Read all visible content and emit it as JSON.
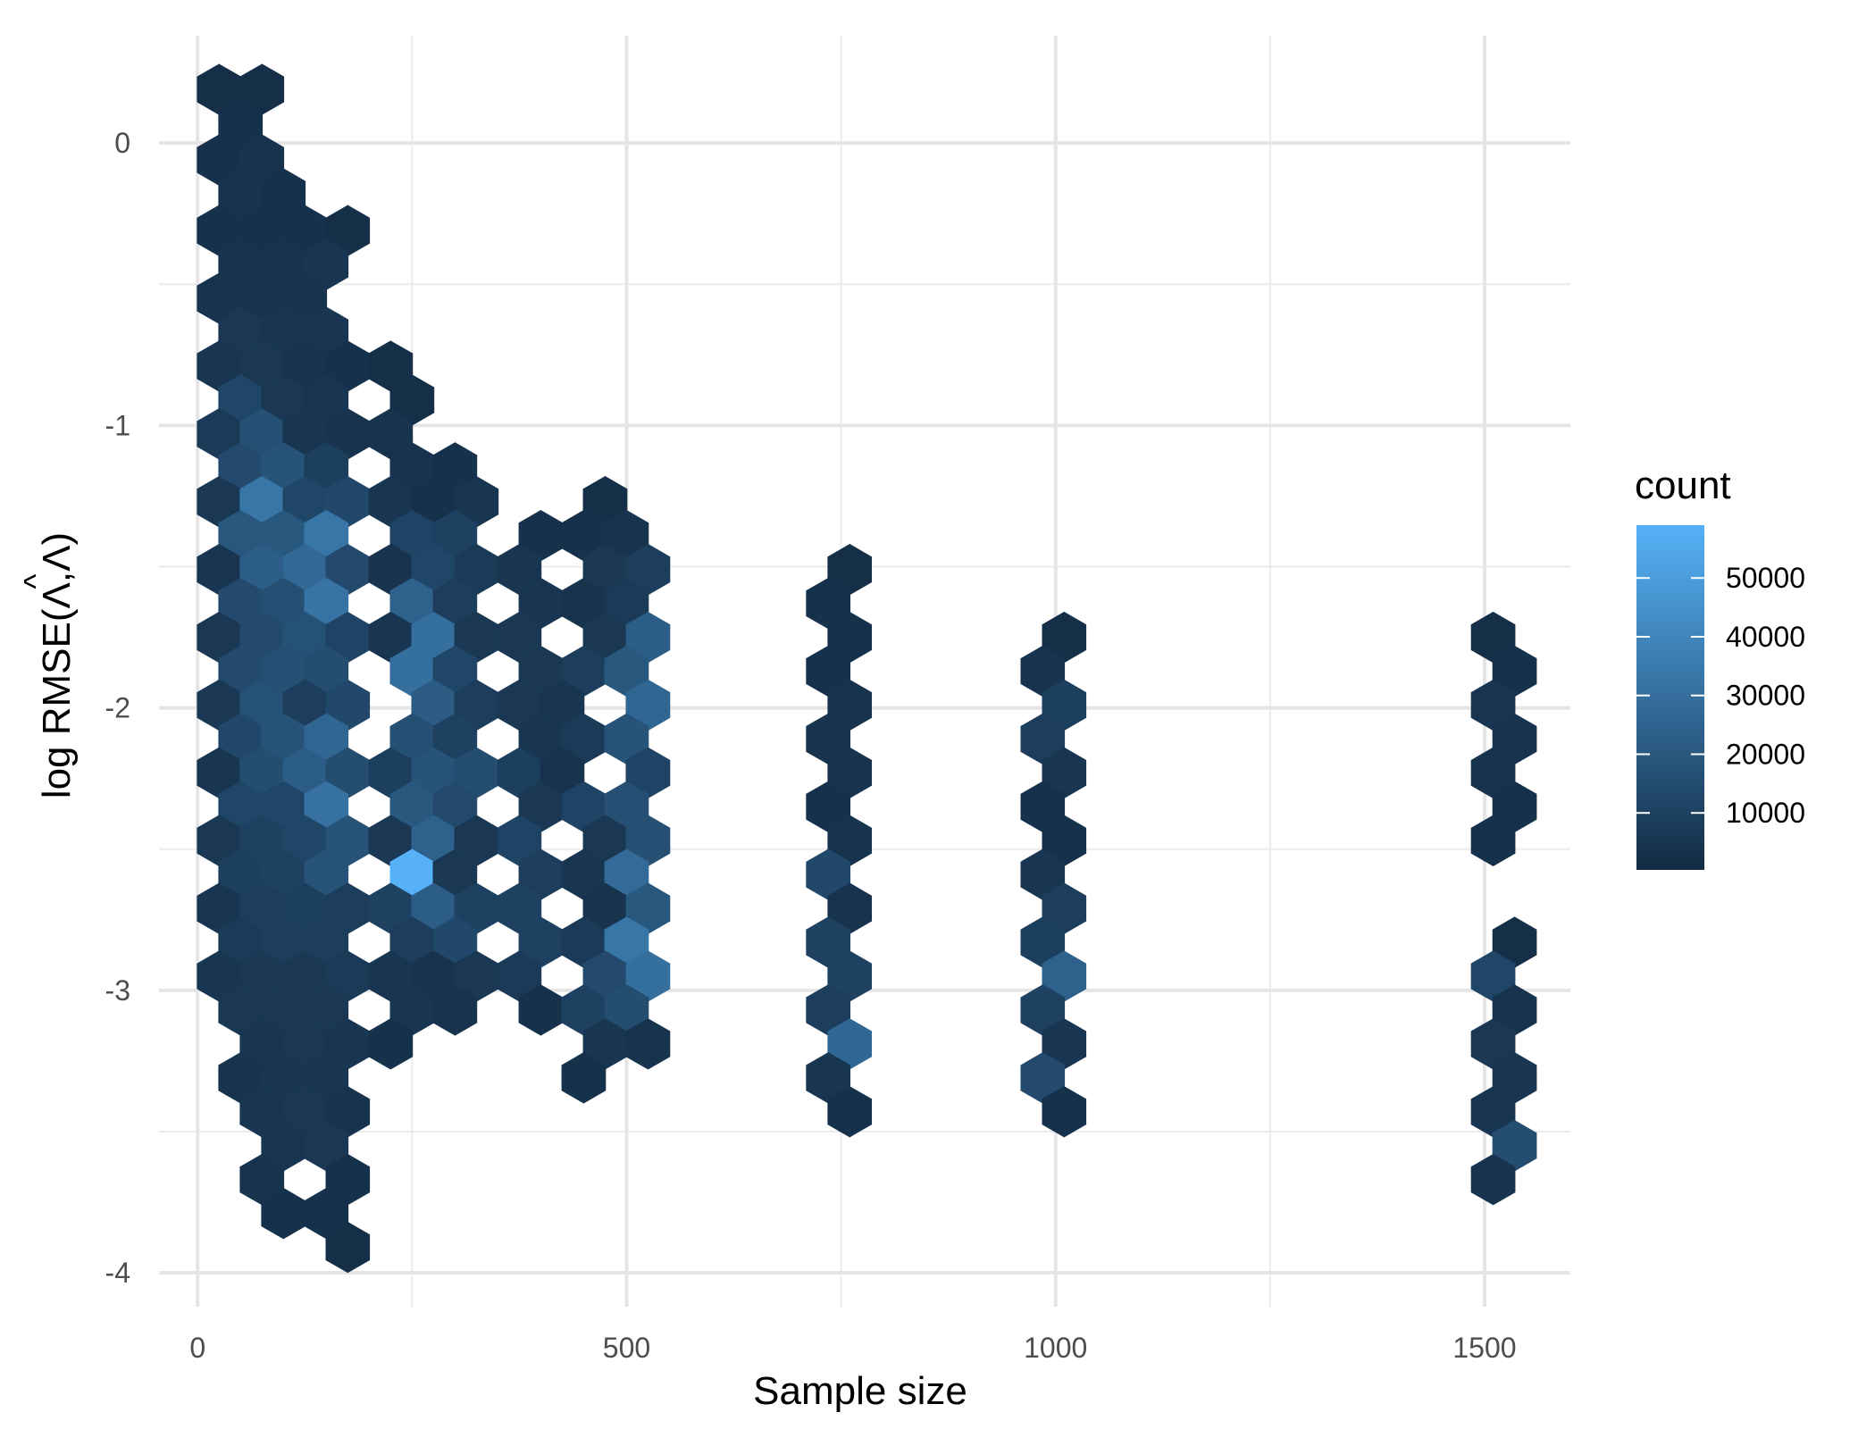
{
  "chart_data": {
    "type": "hexbin",
    "xlabel": "Sample size",
    "ylabel": "log  RMSE(Λ,Λ̂)",
    "ylabel_parts": [
      "log  RMSE(Λ,",
      "Λ",
      ")"
    ],
    "ylabel_hat": "^",
    "x_ticks": [
      0,
      500,
      1000,
      1500
    ],
    "y_ticks": [
      0,
      -1,
      -2,
      -3,
      -4
    ],
    "xlim": [
      -45,
      1600
    ],
    "ylim": [
      -4.12,
      0.38
    ],
    "legend": {
      "title": "count",
      "breaks": [
        10000,
        20000,
        30000,
        40000,
        50000
      ],
      "range": [
        300,
        59000
      ],
      "low_color": "#132B43",
      "high_color": "#56B1F7"
    },
    "bins": [
      {
        "x": 25,
        "y": 0.19,
        "count": 2000
      },
      {
        "x": 75,
        "y": 0.19,
        "count": 2000
      },
      {
        "x": 50,
        "y": 0.06,
        "count": 3000
      },
      {
        "x": 25,
        "y": -0.06,
        "count": 3000
      },
      {
        "x": 75,
        "y": -0.06,
        "count": 4000
      },
      {
        "x": 50,
        "y": -0.18,
        "count": 4000
      },
      {
        "x": 100,
        "y": -0.18,
        "count": 3000
      },
      {
        "x": 25,
        "y": -0.31,
        "count": 3000
      },
      {
        "x": 75,
        "y": -0.31,
        "count": 3000
      },
      {
        "x": 125,
        "y": -0.31,
        "count": 3000
      },
      {
        "x": 175,
        "y": -0.31,
        "count": 2000
      },
      {
        "x": 50,
        "y": -0.43,
        "count": 4000
      },
      {
        "x": 100,
        "y": -0.43,
        "count": 4000
      },
      {
        "x": 150,
        "y": -0.43,
        "count": 5000
      },
      {
        "x": 25,
        "y": -0.55,
        "count": 4000
      },
      {
        "x": 75,
        "y": -0.55,
        "count": 4000
      },
      {
        "x": 125,
        "y": -0.55,
        "count": 4000
      },
      {
        "x": 50,
        "y": -0.67,
        "count": 6000
      },
      {
        "x": 100,
        "y": -0.67,
        "count": 5000
      },
      {
        "x": 150,
        "y": -0.67,
        "count": 5000
      },
      {
        "x": 25,
        "y": -0.79,
        "count": 5000
      },
      {
        "x": 75,
        "y": -0.79,
        "count": 6000
      },
      {
        "x": 125,
        "y": -0.79,
        "count": 4000
      },
      {
        "x": 175,
        "y": -0.79,
        "count": 3000
      },
      {
        "x": 225,
        "y": -0.79,
        "count": 2000
      },
      {
        "x": 50,
        "y": -0.91,
        "count": 12000
      },
      {
        "x": 100,
        "y": -0.91,
        "count": 6000
      },
      {
        "x": 150,
        "y": -0.91,
        "count": 5000
      },
      {
        "x": 250,
        "y": -0.91,
        "count": 2000
      },
      {
        "x": 25,
        "y": -1.03,
        "count": 7000
      },
      {
        "x": 75,
        "y": -1.03,
        "count": 16000
      },
      {
        "x": 125,
        "y": -1.03,
        "count": 5000
      },
      {
        "x": 175,
        "y": -1.03,
        "count": 4000
      },
      {
        "x": 225,
        "y": -1.03,
        "count": 4000
      },
      {
        "x": 50,
        "y": -1.15,
        "count": 14000
      },
      {
        "x": 100,
        "y": -1.15,
        "count": 18000
      },
      {
        "x": 150,
        "y": -1.15,
        "count": 9000
      },
      {
        "x": 250,
        "y": -1.15,
        "count": 4000
      },
      {
        "x": 300,
        "y": -1.15,
        "count": 3000
      },
      {
        "x": 25,
        "y": -1.27,
        "count": 6000
      },
      {
        "x": 75,
        "y": -1.27,
        "count": 33000
      },
      {
        "x": 125,
        "y": -1.27,
        "count": 12000
      },
      {
        "x": 175,
        "y": -1.27,
        "count": 13000
      },
      {
        "x": 225,
        "y": -1.27,
        "count": 5000
      },
      {
        "x": 275,
        "y": -1.27,
        "count": 3000
      },
      {
        "x": 325,
        "y": -1.27,
        "count": 5000
      },
      {
        "x": 475,
        "y": -1.27,
        "count": 2000
      },
      {
        "x": 50,
        "y": -1.39,
        "count": 19000
      },
      {
        "x": 100,
        "y": -1.39,
        "count": 20000
      },
      {
        "x": 150,
        "y": -1.39,
        "count": 33000
      },
      {
        "x": 250,
        "y": -1.39,
        "count": 11000
      },
      {
        "x": 300,
        "y": -1.39,
        "count": 10000
      },
      {
        "x": 400,
        "y": -1.39,
        "count": 3000
      },
      {
        "x": 450,
        "y": -1.39,
        "count": 3000
      },
      {
        "x": 500,
        "y": -1.39,
        "count": 4000
      },
      {
        "x": 25,
        "y": -1.51,
        "count": 5000
      },
      {
        "x": 75,
        "y": -1.51,
        "count": 22000
      },
      {
        "x": 125,
        "y": -1.51,
        "count": 27000
      },
      {
        "x": 175,
        "y": -1.51,
        "count": 14000
      },
      {
        "x": 225,
        "y": -1.51,
        "count": 4000
      },
      {
        "x": 275,
        "y": -1.51,
        "count": 12000
      },
      {
        "x": 325,
        "y": -1.51,
        "count": 7000
      },
      {
        "x": 375,
        "y": -1.51,
        "count": 5000
      },
      {
        "x": 475,
        "y": -1.51,
        "count": 6000
      },
      {
        "x": 525,
        "y": -1.51,
        "count": 8000
      },
      {
        "x": 760,
        "y": -1.51,
        "count": 2000
      },
      {
        "x": 50,
        "y": -1.63,
        "count": 14000
      },
      {
        "x": 100,
        "y": -1.63,
        "count": 16000
      },
      {
        "x": 150,
        "y": -1.63,
        "count": 32000
      },
      {
        "x": 250,
        "y": -1.63,
        "count": 24000
      },
      {
        "x": 300,
        "y": -1.63,
        "count": 8000
      },
      {
        "x": 400,
        "y": -1.63,
        "count": 5000
      },
      {
        "x": 450,
        "y": -1.63,
        "count": 4000
      },
      {
        "x": 500,
        "y": -1.63,
        "count": 7000
      },
      {
        "x": 735,
        "y": -1.63,
        "count": 3000
      },
      {
        "x": 25,
        "y": -1.75,
        "count": 6000
      },
      {
        "x": 75,
        "y": -1.75,
        "count": 14000
      },
      {
        "x": 125,
        "y": -1.75,
        "count": 17000
      },
      {
        "x": 175,
        "y": -1.75,
        "count": 11000
      },
      {
        "x": 225,
        "y": -1.75,
        "count": 5000
      },
      {
        "x": 275,
        "y": -1.75,
        "count": 30000
      },
      {
        "x": 325,
        "y": -1.75,
        "count": 6000
      },
      {
        "x": 375,
        "y": -1.75,
        "count": 6000
      },
      {
        "x": 475,
        "y": -1.75,
        "count": 6000
      },
      {
        "x": 525,
        "y": -1.75,
        "count": 22000
      },
      {
        "x": 760,
        "y": -1.75,
        "count": 3000
      },
      {
        "x": 1010,
        "y": -1.75,
        "count": 2000
      },
      {
        "x": 1510,
        "y": -1.75,
        "count": 2000
      },
      {
        "x": 50,
        "y": -1.87,
        "count": 14000
      },
      {
        "x": 100,
        "y": -1.87,
        "count": 16000
      },
      {
        "x": 150,
        "y": -1.87,
        "count": 15000
      },
      {
        "x": 250,
        "y": -1.87,
        "count": 30000
      },
      {
        "x": 300,
        "y": -1.87,
        "count": 12000
      },
      {
        "x": 400,
        "y": -1.87,
        "count": 6000
      },
      {
        "x": 450,
        "y": -1.87,
        "count": 8000
      },
      {
        "x": 500,
        "y": -1.87,
        "count": 20000
      },
      {
        "x": 735,
        "y": -1.87,
        "count": 3000
      },
      {
        "x": 985,
        "y": -1.87,
        "count": 4000
      },
      {
        "x": 1535,
        "y": -1.87,
        "count": 3000
      },
      {
        "x": 25,
        "y": -1.99,
        "count": 6000
      },
      {
        "x": 75,
        "y": -1.99,
        "count": 17000
      },
      {
        "x": 125,
        "y": -1.99,
        "count": 8000
      },
      {
        "x": 175,
        "y": -1.99,
        "count": 13000
      },
      {
        "x": 275,
        "y": -1.99,
        "count": 21000
      },
      {
        "x": 325,
        "y": -1.99,
        "count": 8000
      },
      {
        "x": 375,
        "y": -1.99,
        "count": 6000
      },
      {
        "x": 425,
        "y": -1.99,
        "count": 5000
      },
      {
        "x": 525,
        "y": -1.99,
        "count": 26000
      },
      {
        "x": 760,
        "y": -1.99,
        "count": 4000
      },
      {
        "x": 1010,
        "y": -1.99,
        "count": 9000
      },
      {
        "x": 1510,
        "y": -1.99,
        "count": 5000
      },
      {
        "x": 50,
        "y": -2.11,
        "count": 13000
      },
      {
        "x": 100,
        "y": -2.11,
        "count": 18000
      },
      {
        "x": 150,
        "y": -2.11,
        "count": 26000
      },
      {
        "x": 250,
        "y": -2.11,
        "count": 16000
      },
      {
        "x": 300,
        "y": -2.11,
        "count": 10000
      },
      {
        "x": 400,
        "y": -2.11,
        "count": 5000
      },
      {
        "x": 450,
        "y": -2.11,
        "count": 7000
      },
      {
        "x": 500,
        "y": -2.11,
        "count": 18000
      },
      {
        "x": 735,
        "y": -2.11,
        "count": 4000
      },
      {
        "x": 985,
        "y": -2.11,
        "count": 8000
      },
      {
        "x": 1535,
        "y": -2.11,
        "count": 4000
      },
      {
        "x": 25,
        "y": -2.23,
        "count": 5000
      },
      {
        "x": 75,
        "y": -2.23,
        "count": 15000
      },
      {
        "x": 125,
        "y": -2.23,
        "count": 22000
      },
      {
        "x": 175,
        "y": -2.23,
        "count": 15000
      },
      {
        "x": 225,
        "y": -2.23,
        "count": 9000
      },
      {
        "x": 275,
        "y": -2.23,
        "count": 18000
      },
      {
        "x": 325,
        "y": -2.23,
        "count": 15000
      },
      {
        "x": 375,
        "y": -2.23,
        "count": 9000
      },
      {
        "x": 425,
        "y": -2.23,
        "count": 4000
      },
      {
        "x": 525,
        "y": -2.23,
        "count": 11000
      },
      {
        "x": 760,
        "y": -2.23,
        "count": 4000
      },
      {
        "x": 1010,
        "y": -2.23,
        "count": 5000
      },
      {
        "x": 1510,
        "y": -2.23,
        "count": 4000
      },
      {
        "x": 50,
        "y": -2.35,
        "count": 12000
      },
      {
        "x": 100,
        "y": -2.35,
        "count": 12000
      },
      {
        "x": 150,
        "y": -2.35,
        "count": 31000
      },
      {
        "x": 250,
        "y": -2.35,
        "count": 20000
      },
      {
        "x": 300,
        "y": -2.35,
        "count": 14000
      },
      {
        "x": 400,
        "y": -2.35,
        "count": 6000
      },
      {
        "x": 450,
        "y": -2.35,
        "count": 11000
      },
      {
        "x": 500,
        "y": -2.35,
        "count": 16000
      },
      {
        "x": 735,
        "y": -2.35,
        "count": 3000
      },
      {
        "x": 985,
        "y": -2.35,
        "count": 3000
      },
      {
        "x": 1535,
        "y": -2.35,
        "count": 3000
      },
      {
        "x": 25,
        "y": -2.47,
        "count": 6000
      },
      {
        "x": 75,
        "y": -2.47,
        "count": 10000
      },
      {
        "x": 125,
        "y": -2.47,
        "count": 12000
      },
      {
        "x": 175,
        "y": -2.47,
        "count": 18000
      },
      {
        "x": 225,
        "y": -2.47,
        "count": 6000
      },
      {
        "x": 275,
        "y": -2.47,
        "count": 24000
      },
      {
        "x": 325,
        "y": -2.47,
        "count": 6000
      },
      {
        "x": 375,
        "y": -2.47,
        "count": 11000
      },
      {
        "x": 475,
        "y": -2.47,
        "count": 6000
      },
      {
        "x": 525,
        "y": -2.47,
        "count": 16000
      },
      {
        "x": 760,
        "y": -2.47,
        "count": 4000
      },
      {
        "x": 1010,
        "y": -2.47,
        "count": 3000
      },
      {
        "x": 1510,
        "y": -2.47,
        "count": 3000
      },
      {
        "x": 50,
        "y": -2.59,
        "count": 9000
      },
      {
        "x": 100,
        "y": -2.59,
        "count": 10000
      },
      {
        "x": 150,
        "y": -2.59,
        "count": 18000
      },
      {
        "x": 250,
        "y": -2.59,
        "count": 59000
      },
      {
        "x": 300,
        "y": -2.59,
        "count": 6000
      },
      {
        "x": 400,
        "y": -2.59,
        "count": 8000
      },
      {
        "x": 450,
        "y": -2.59,
        "count": 5000
      },
      {
        "x": 500,
        "y": -2.59,
        "count": 28000
      },
      {
        "x": 735,
        "y": -2.59,
        "count": 13000
      },
      {
        "x": 985,
        "y": -2.59,
        "count": 5000
      },
      {
        "x": 25,
        "y": -2.71,
        "count": 5000
      },
      {
        "x": 75,
        "y": -2.71,
        "count": 8000
      },
      {
        "x": 125,
        "y": -2.71,
        "count": 9000
      },
      {
        "x": 175,
        "y": -2.71,
        "count": 8000
      },
      {
        "x": 225,
        "y": -2.71,
        "count": 10000
      },
      {
        "x": 275,
        "y": -2.71,
        "count": 22000
      },
      {
        "x": 325,
        "y": -2.71,
        "count": 10000
      },
      {
        "x": 375,
        "y": -2.71,
        "count": 10000
      },
      {
        "x": 475,
        "y": -2.71,
        "count": 4000
      },
      {
        "x": 525,
        "y": -2.71,
        "count": 20000
      },
      {
        "x": 760,
        "y": -2.71,
        "count": 4000
      },
      {
        "x": 1010,
        "y": -2.71,
        "count": 8000
      },
      {
        "x": 50,
        "y": -2.83,
        "count": 7000
      },
      {
        "x": 100,
        "y": -2.83,
        "count": 8000
      },
      {
        "x": 150,
        "y": -2.83,
        "count": 8000
      },
      {
        "x": 250,
        "y": -2.83,
        "count": 8000
      },
      {
        "x": 300,
        "y": -2.83,
        "count": 13000
      },
      {
        "x": 400,
        "y": -2.83,
        "count": 10000
      },
      {
        "x": 450,
        "y": -2.83,
        "count": 7000
      },
      {
        "x": 500,
        "y": -2.83,
        "count": 33000
      },
      {
        "x": 735,
        "y": -2.83,
        "count": 10000
      },
      {
        "x": 985,
        "y": -2.83,
        "count": 9000
      },
      {
        "x": 1535,
        "y": -2.83,
        "count": 2000
      },
      {
        "x": 25,
        "y": -2.95,
        "count": 5000
      },
      {
        "x": 75,
        "y": -2.95,
        "count": 6000
      },
      {
        "x": 125,
        "y": -2.95,
        "count": 6000
      },
      {
        "x": 175,
        "y": -2.95,
        "count": 7000
      },
      {
        "x": 225,
        "y": -2.95,
        "count": 5000
      },
      {
        "x": 275,
        "y": -2.95,
        "count": 4000
      },
      {
        "x": 325,
        "y": -2.95,
        "count": 6000
      },
      {
        "x": 375,
        "y": -2.95,
        "count": 7000
      },
      {
        "x": 475,
        "y": -2.95,
        "count": 14000
      },
      {
        "x": 525,
        "y": -2.95,
        "count": 30000
      },
      {
        "x": 760,
        "y": -2.95,
        "count": 10000
      },
      {
        "x": 1010,
        "y": -2.95,
        "count": 24000
      },
      {
        "x": 1510,
        "y": -2.95,
        "count": 12000
      },
      {
        "x": 50,
        "y": -3.07,
        "count": 6000
      },
      {
        "x": 100,
        "y": -3.07,
        "count": 6000
      },
      {
        "x": 150,
        "y": -3.07,
        "count": 6000
      },
      {
        "x": 250,
        "y": -3.07,
        "count": 5000
      },
      {
        "x": 300,
        "y": -3.07,
        "count": 4000
      },
      {
        "x": 400,
        "y": -3.07,
        "count": 3000
      },
      {
        "x": 450,
        "y": -3.07,
        "count": 10000
      },
      {
        "x": 500,
        "y": -3.07,
        "count": 15000
      },
      {
        "x": 735,
        "y": -3.07,
        "count": 8000
      },
      {
        "x": 985,
        "y": -3.07,
        "count": 10000
      },
      {
        "x": 1535,
        "y": -3.07,
        "count": 4000
      },
      {
        "x": 75,
        "y": -3.19,
        "count": 5000
      },
      {
        "x": 125,
        "y": -3.19,
        "count": 6000
      },
      {
        "x": 175,
        "y": -3.19,
        "count": 5000
      },
      {
        "x": 225,
        "y": -3.19,
        "count": 3000
      },
      {
        "x": 475,
        "y": -3.19,
        "count": 5000
      },
      {
        "x": 525,
        "y": -3.19,
        "count": 4000
      },
      {
        "x": 760,
        "y": -3.19,
        "count": 26000
      },
      {
        "x": 1010,
        "y": -3.19,
        "count": 5000
      },
      {
        "x": 1510,
        "y": -3.19,
        "count": 6000
      },
      {
        "x": 50,
        "y": -3.31,
        "count": 4000
      },
      {
        "x": 100,
        "y": -3.31,
        "count": 5000
      },
      {
        "x": 150,
        "y": -3.31,
        "count": 5000
      },
      {
        "x": 450,
        "y": -3.31,
        "count": 3000
      },
      {
        "x": 735,
        "y": -3.31,
        "count": 5000
      },
      {
        "x": 985,
        "y": -3.31,
        "count": 14000
      },
      {
        "x": 1535,
        "y": -3.31,
        "count": 5000
      },
      {
        "x": 75,
        "y": -3.43,
        "count": 5000
      },
      {
        "x": 125,
        "y": -3.43,
        "count": 6000
      },
      {
        "x": 175,
        "y": -3.43,
        "count": 4000
      },
      {
        "x": 760,
        "y": -3.43,
        "count": 3000
      },
      {
        "x": 1010,
        "y": -3.43,
        "count": 3000
      },
      {
        "x": 1510,
        "y": -3.43,
        "count": 5000
      },
      {
        "x": 100,
        "y": -3.55,
        "count": 5000
      },
      {
        "x": 150,
        "y": -3.55,
        "count": 6000
      },
      {
        "x": 1535,
        "y": -3.55,
        "count": 15000
      },
      {
        "x": 75,
        "y": -3.67,
        "count": 4000
      },
      {
        "x": 175,
        "y": -3.67,
        "count": 3000
      },
      {
        "x": 1510,
        "y": -3.67,
        "count": 4000
      },
      {
        "x": 100,
        "y": -3.79,
        "count": 3000
      },
      {
        "x": 150,
        "y": -3.79,
        "count": 3000
      },
      {
        "x": 175,
        "y": -3.91,
        "count": 2000
      }
    ]
  }
}
